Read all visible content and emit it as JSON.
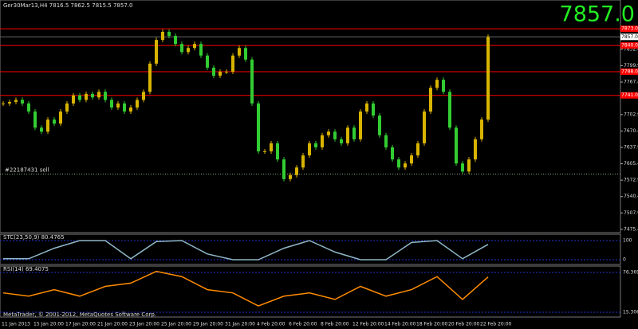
{
  "chart_data": [
    {
      "type": "candlestick",
      "title": "Ger30Mar13,H4  7816.5 7862.5 7815.5 7857.0",
      "last_price": {
        "value": 7857,
        "label": "7857.0"
      },
      "order_label": "#22187431 sell",
      "order_price": 7585,
      "footer": "MetaTrader, © 2001-2012, MetaQuotes Software Corp.",
      "up_color": "#d8b400",
      "down_color": "#32cd32",
      "level_color": "#ff0000",
      "categories": [
        "11 Jan 2013",
        "15 Jan 20:00",
        "17 Jan 20:00",
        "21 Jan 20:00",
        "23 Jan 20:00",
        "25 Jan 20:00",
        "29 Jan 20:00",
        "31 Jan 20:00",
        "4 Feb 20:00",
        "6 Feb 20:00",
        "8 Feb 20:00",
        "12 Feb 20:00",
        "14 Feb 20:00",
        "18 Feb 20:00",
        "20 Feb 20:00",
        "22 Feb 20:00"
      ],
      "close": [
        7725,
        7728,
        7732,
        7725,
        7709,
        7677,
        7669,
        7693,
        7685,
        7709,
        7725,
        7741,
        7732,
        7744,
        7737,
        7748,
        7732,
        7717,
        7725,
        7709,
        7717,
        7732,
        7748,
        7804,
        7851,
        7867,
        7859,
        7843,
        7827,
        7835,
        7843,
        7820,
        7796,
        7780,
        7788,
        7788,
        7820,
        7835,
        7812,
        7725,
        7630,
        7630,
        7646,
        7614,
        7575,
        7583,
        7598,
        7622,
        7646,
        7638,
        7662,
        7669,
        7654,
        7646,
        7677,
        7654,
        7709,
        7725,
        7701,
        7662,
        7638,
        7614,
        7598,
        7606,
        7622,
        7646,
        7709,
        7756,
        7772,
        7748,
        7677,
        7606,
        7590,
        7614,
        7654,
        7693,
        7857
      ],
      "ylim": [
        7472,
        7927
      ],
      "yticks": [
        7832.4,
        7799.9,
        7767.4,
        7702.9,
        7670.4,
        7637.9,
        7605.4,
        7572.9,
        7540.4,
        7507.9,
        7475.4
      ],
      "levels": [
        {
          "value": 7873,
          "label": "7873.0"
        },
        {
          "value": 7840,
          "label": "7840.0"
        },
        {
          "value": 7788,
          "label": "7788.0"
        },
        {
          "value": 7741,
          "label": "7741.0"
        }
      ]
    },
    {
      "type": "line",
      "title": "STC(23,50,9) 80.4765",
      "color": "#8fb8c8",
      "values": [
        5,
        5,
        60,
        100,
        100,
        5,
        95,
        100,
        30,
        0,
        0,
        60,
        100,
        40,
        0,
        0,
        90,
        100,
        5,
        80
      ],
      "ylim": [
        0,
        100
      ],
      "yticks": [
        100,
        0
      ]
    },
    {
      "type": "line",
      "title": "RSI(14) 69.4075",
      "color": "#ff8c00",
      "values": [
        45,
        40,
        50,
        40,
        55,
        60,
        78,
        70,
        50,
        45,
        25,
        40,
        45,
        35,
        55,
        40,
        50,
        70,
        35,
        69.4
      ],
      "ylim": [
        15.3066,
        76.3693
      ],
      "yticks": [
        76.3693,
        15.3066
      ]
    }
  ]
}
